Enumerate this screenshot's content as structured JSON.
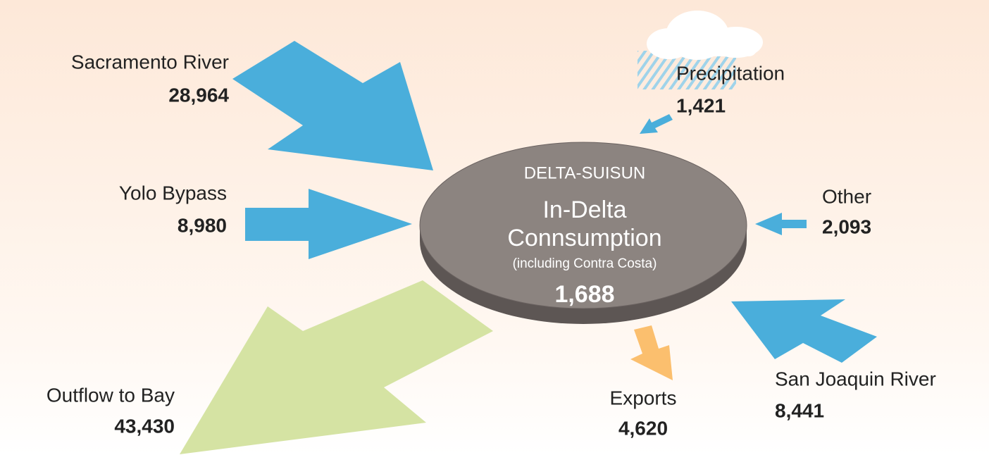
{
  "center": {
    "title": "DELTA-SUISUN",
    "lines": [
      "In-Delta",
      "Connsumption"
    ],
    "note": "(including Contra Costa)",
    "value": "1,688"
  },
  "flows": [
    {
      "label": "Sacramento River",
      "value": "28,964"
    },
    {
      "label": "Yolo Bypass",
      "value": "8,980"
    },
    {
      "label": "Precipitation",
      "value": "1,421"
    },
    {
      "label": "Other",
      "value": "2,093"
    },
    {
      "label": "San Joaquin River",
      "value": "8,441"
    },
    {
      "label": "Exports",
      "value": "4,620"
    },
    {
      "label": "Outflow to Bay",
      "value": "43,430"
    }
  ]
}
